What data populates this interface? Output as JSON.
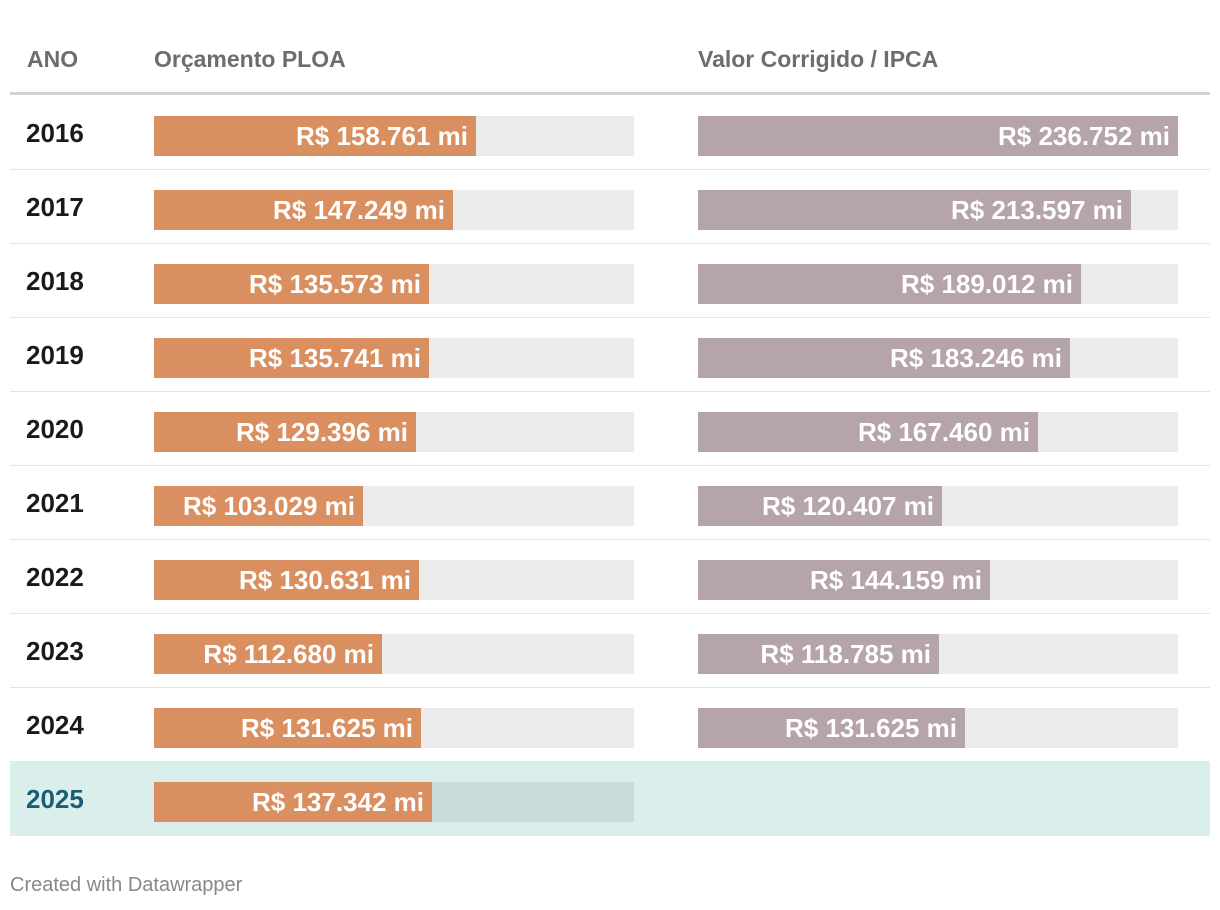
{
  "chart_data": {
    "type": "bar",
    "columns": {
      "year": "ANO",
      "ploa": "Orçamento PLOA",
      "ipca": "Valor Corrigido / IPCA"
    },
    "unit": "R$ mi",
    "xlim": [
      0,
      236.752
    ],
    "rows": [
      {
        "year": "2016",
        "ploa": 158.761,
        "ploa_label": "R$ 158.761 mi",
        "ipca": 236.752,
        "ipca_label": "R$ 236.752 mi"
      },
      {
        "year": "2017",
        "ploa": 147.249,
        "ploa_label": "R$ 147.249 mi",
        "ipca": 213.597,
        "ipca_label": "R$ 213.597 mi"
      },
      {
        "year": "2018",
        "ploa": 135.573,
        "ploa_label": "R$ 135.573 mi",
        "ipca": 189.012,
        "ipca_label": "R$ 189.012 mi"
      },
      {
        "year": "2019",
        "ploa": 135.741,
        "ploa_label": "R$ 135.741 mi",
        "ipca": 183.246,
        "ipca_label": "R$ 183.246 mi"
      },
      {
        "year": "2020",
        "ploa": 129.396,
        "ploa_label": "R$ 129.396 mi",
        "ipca": 167.46,
        "ipca_label": "R$ 167.460 mi"
      },
      {
        "year": "2021",
        "ploa": 103.029,
        "ploa_label": "R$ 103.029 mi",
        "ipca": 120.407,
        "ipca_label": "R$ 120.407 mi"
      },
      {
        "year": "2022",
        "ploa": 130.631,
        "ploa_label": "R$ 130.631 mi",
        "ipca": 144.159,
        "ipca_label": "R$ 144.159 mi"
      },
      {
        "year": "2023",
        "ploa": 112.68,
        "ploa_label": "R$ 112.680 mi",
        "ipca": 118.785,
        "ipca_label": "R$ 118.785 mi"
      },
      {
        "year": "2024",
        "ploa": 131.625,
        "ploa_label": "R$ 131.625 mi",
        "ipca": 131.625,
        "ipca_label": "R$ 131.625 mi"
      },
      {
        "year": "2025",
        "ploa": 137.342,
        "ploa_label": "R$ 137.342 mi",
        "ipca": null,
        "ipca_label": null,
        "highlight": true
      }
    ],
    "colors": {
      "ploa": "#d98f5f",
      "ipca": "#b5a4a8",
      "track": "#ececec",
      "highlight": "#daefec"
    }
  },
  "footer": {
    "credit": "Created with Datawrapper"
  }
}
